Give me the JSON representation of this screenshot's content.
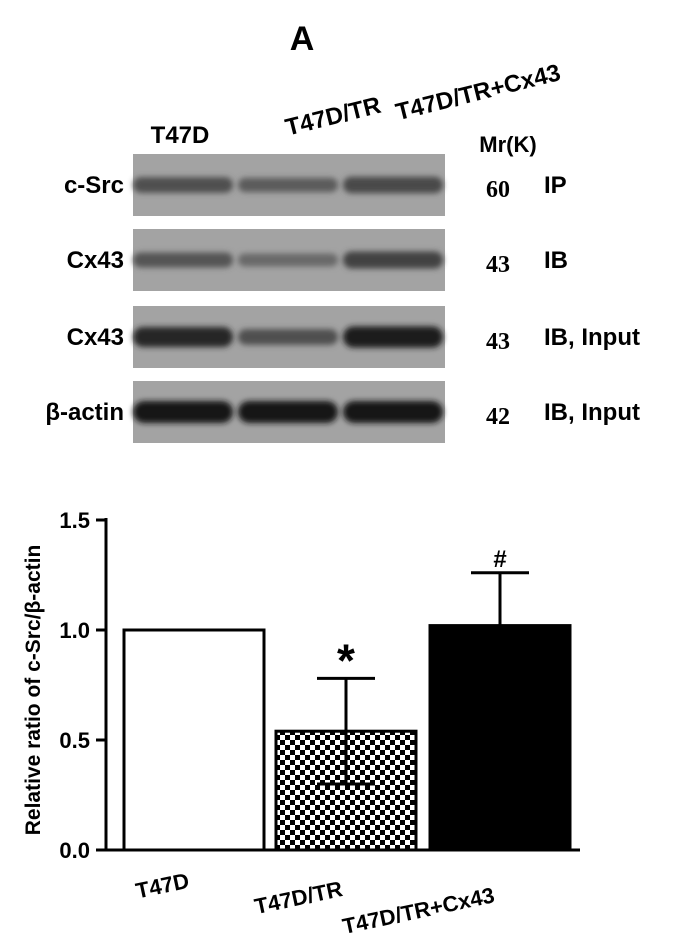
{
  "panel_label": "A",
  "blot": {
    "lanes": [
      "T47D",
      "T47D/TR",
      "T47D/TR+Cx43"
    ],
    "mr_header": "Mr(K)",
    "rows": [
      {
        "label": "c-Src",
        "mr": "60",
        "note": "IP",
        "intensity": [
          0.55,
          0.45,
          0.6
        ]
      },
      {
        "label": "Cx43",
        "mr": "43",
        "note": "IB",
        "intensity": [
          0.5,
          0.35,
          0.65
        ]
      },
      {
        "label": "Cx43",
        "mr": "43",
        "note": "IB, Input",
        "intensity": [
          0.85,
          0.55,
          0.95
        ]
      },
      {
        "label": "β-actin",
        "mr": "42",
        "note": "IB, Input",
        "intensity": [
          1.0,
          1.0,
          1.0
        ]
      }
    ]
  },
  "chart_data": {
    "type": "bar",
    "categories": [
      "T47D",
      "T47D/TR",
      "T47D/TR+Cx43"
    ],
    "values": [
      1.0,
      0.54,
      1.02
    ],
    "errors": [
      0,
      0.24,
      0.24
    ],
    "annotations": [
      "",
      "*",
      "#"
    ],
    "fills": [
      "white",
      "checker",
      "black"
    ],
    "ylabel": "Relative ratio of c-Src/β-actin",
    "xlabel": "",
    "ylim": [
      0,
      1.5
    ],
    "yticks": [
      "0.0",
      "0.5",
      "1.0",
      "1.5"
    ],
    "grid": false
  }
}
